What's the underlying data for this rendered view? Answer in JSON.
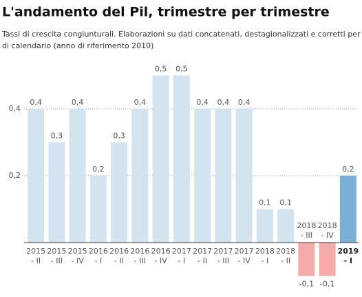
{
  "chart_data": {
    "type": "bar",
    "title": "L'andamento del Pil, trimestre per trimestre",
    "subtitle": [
      "Tassi di crescita congiunturali. Elaborazioni su dati concatenati, destagionalizzati e corretti per gli effetti",
      "di calendario (anno di riferimento 2010)"
    ],
    "categories": [
      [
        "2015",
        "- II"
      ],
      [
        "2015",
        "- III"
      ],
      [
        "2015",
        "- IV"
      ],
      [
        "2016",
        "- I"
      ],
      [
        "2016",
        "- II"
      ],
      [
        "2016",
        "- III"
      ],
      [
        "2016",
        "- IV"
      ],
      [
        "2017",
        "- I"
      ],
      [
        "2017",
        "- II"
      ],
      [
        "2017",
        "- III"
      ],
      [
        "2017",
        "- IV"
      ],
      [
        "2018",
        "- I"
      ],
      [
        "2018",
        "- II"
      ],
      [
        "2018",
        "- III"
      ],
      [
        "2018",
        "- IV"
      ],
      [
        "2019",
        "- I"
      ]
    ],
    "values": [
      0.4,
      0.3,
      0.4,
      0.2,
      0.3,
      0.4,
      0.5,
      0.5,
      0.4,
      0.4,
      0.4,
      0.1,
      0.1,
      -0.1,
      -0.1,
      0.2
    ],
    "value_labels": [
      "0,4",
      "0,3",
      "0,4",
      "0,2",
      "0,3",
      "0,4",
      "0,5",
      "0,5",
      "0,4",
      "0,4",
      "0,4",
      "0,1",
      "0,1",
      "-0,1",
      "-0,1",
      "0,2"
    ],
    "colors": [
      "#d3e4f0",
      "#d3e4f0",
      "#d3e4f0",
      "#d3e4f0",
      "#d3e4f0",
      "#d3e4f0",
      "#d3e4f0",
      "#d3e4f0",
      "#d3e4f0",
      "#d3e4f0",
      "#d3e4f0",
      "#d3e4f0",
      "#d3e4f0",
      "#f4aaa9",
      "#f4aaa9",
      "#7bb0d6"
    ],
    "ylim": [
      -0.1,
      0.5
    ],
    "yticks": [
      {
        "value": 0.2,
        "label": "0,2"
      },
      {
        "value": 0.4,
        "label": "0,4"
      }
    ],
    "grid": true
  }
}
